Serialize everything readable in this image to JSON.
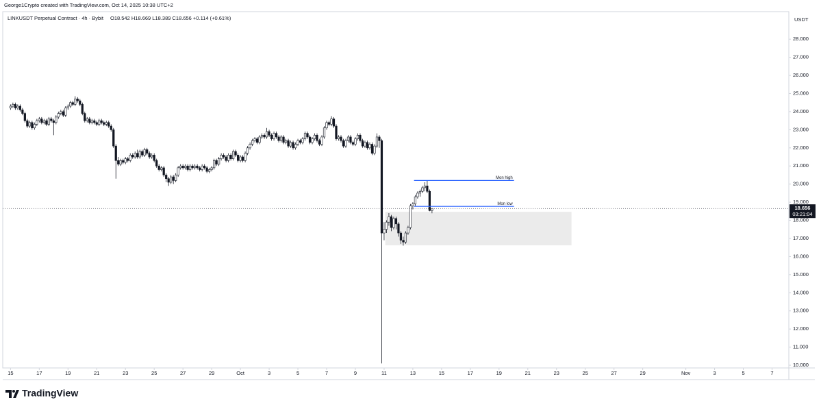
{
  "header": {
    "credit": "George1Crypto created with TradingView.com, Oct 14, 2025 10:38 UTC+2",
    "brand": "TradingView"
  },
  "chart_data": {
    "type": "candlestick",
    "title": "LINKUSDT Perpetual Contract · 4h · Bybit",
    "ohlc_legend": "O18.542 H18.669 L18.389 C18.656 +0.114 (+0.61%)",
    "y_axis_label": "USDT",
    "up_color": "#ffffff",
    "down_color": "#131722",
    "wick_color": "#131722",
    "x": [
      0,
      4,
      8,
      12,
      16,
      20,
      24,
      28,
      32,
      36,
      40,
      44,
      48,
      52,
      56,
      60,
      64,
      68,
      72,
      76,
      80,
      84,
      88,
      92,
      96,
      100,
      104,
      108,
      112,
      116,
      120,
      124,
      128,
      132,
      136,
      140,
      144,
      148,
      152,
      156,
      160,
      164,
      168,
      172,
      176,
      180,
      184,
      188,
      192,
      196,
      200,
      204,
      208,
      212,
      216,
      220,
      224,
      228,
      232,
      236,
      240,
      244,
      248,
      252,
      256,
      260,
      264,
      268,
      272,
      276,
      280,
      284,
      288,
      292,
      296,
      300,
      304,
      308,
      312,
      316,
      320,
      324,
      328,
      332,
      336,
      340,
      344,
      348,
      352,
      356,
      360,
      364,
      368,
      372,
      376,
      380,
      384,
      388,
      392,
      396,
      400,
      404,
      408,
      412,
      416,
      420,
      424,
      428,
      432,
      436,
      440,
      444,
      448,
      452,
      456,
      460,
      464,
      468,
      472,
      476,
      480,
      484,
      488,
      492,
      496,
      500,
      504,
      508,
      512,
      516,
      520,
      524,
      528,
      532,
      536,
      540,
      544,
      548,
      552,
      556,
      560,
      564,
      568,
      572,
      576,
      580,
      584,
      588,
      592,
      596,
      600,
      604,
      608,
      612,
      616,
      620,
      624,
      628,
      632,
      636,
      640,
      644,
      648,
      652,
      656,
      660,
      664,
      668,
      672,
      676,
      680,
      684,
      688,
      692,
      696,
      700,
      704
    ],
    "ohlc": [
      [
        24.2,
        24.4,
        24.1,
        24.3
      ],
      [
        24.3,
        24.5,
        24.2,
        24.4
      ],
      [
        24.4,
        24.5,
        24.1,
        24.2
      ],
      [
        24.2,
        24.4,
        24.1,
        24.3
      ],
      [
        24.3,
        24.4,
        24.0,
        24.1
      ],
      [
        24.1,
        24.2,
        23.8,
        23.9
      ],
      [
        23.9,
        24.0,
        23.4,
        23.5
      ],
      [
        23.5,
        23.6,
        23.1,
        23.2
      ],
      [
        23.2,
        23.5,
        23.1,
        23.4
      ],
      [
        23.4,
        23.5,
        23.0,
        23.1
      ],
      [
        23.1,
        23.4,
        23.0,
        23.3
      ],
      [
        23.3,
        23.6,
        23.2,
        23.5
      ],
      [
        23.5,
        23.7,
        23.4,
        23.6
      ],
      [
        23.6,
        23.7,
        23.3,
        23.4
      ],
      [
        23.4,
        23.6,
        23.3,
        23.5
      ],
      [
        23.5,
        23.6,
        23.2,
        23.3
      ],
      [
        23.3,
        23.7,
        23.2,
        23.6
      ],
      [
        23.6,
        23.7,
        23.4,
        23.5
      ],
      [
        23.5,
        23.6,
        22.7,
        23.4
      ],
      [
        23.4,
        23.8,
        23.3,
        23.7
      ],
      [
        23.7,
        24.0,
        23.6,
        23.9
      ],
      [
        23.9,
        24.1,
        23.8,
        24.0
      ],
      [
        24.0,
        24.1,
        23.7,
        23.8
      ],
      [
        23.8,
        24.3,
        23.7,
        24.2
      ],
      [
        24.2,
        24.4,
        24.1,
        24.3
      ],
      [
        24.3,
        24.6,
        24.2,
        24.5
      ],
      [
        24.5,
        24.6,
        24.3,
        24.4
      ],
      [
        24.4,
        24.85,
        24.3,
        24.7
      ],
      [
        24.7,
        24.8,
        24.5,
        24.6
      ],
      [
        24.6,
        24.7,
        24.3,
        24.4
      ],
      [
        24.4,
        24.5,
        23.8,
        23.9
      ],
      [
        23.9,
        24.0,
        23.4,
        23.5
      ],
      [
        23.5,
        23.7,
        23.4,
        23.6
      ],
      [
        23.6,
        23.7,
        23.3,
        23.4
      ],
      [
        23.4,
        23.6,
        23.3,
        23.5
      ],
      [
        23.5,
        23.6,
        23.3,
        23.4
      ],
      [
        23.4,
        23.5,
        23.2,
        23.3
      ],
      [
        23.3,
        23.6,
        23.2,
        23.5
      ],
      [
        23.5,
        23.6,
        23.3,
        23.4
      ],
      [
        23.4,
        23.5,
        23.2,
        23.3
      ],
      [
        23.3,
        23.5,
        23.2,
        23.4
      ],
      [
        23.4,
        23.5,
        23.1,
        23.2
      ],
      [
        23.2,
        23.3,
        22.9,
        23.0
      ],
      [
        23.0,
        23.1,
        22.0,
        22.1
      ],
      [
        22.1,
        22.2,
        20.3,
        21.3
      ],
      [
        21.3,
        21.5,
        21.0,
        21.1
      ],
      [
        21.1,
        21.4,
        21.0,
        21.3
      ],
      [
        21.3,
        21.4,
        21.1,
        21.2
      ],
      [
        21.2,
        21.5,
        21.1,
        21.4
      ],
      [
        21.4,
        21.5,
        21.2,
        21.3
      ],
      [
        21.3,
        21.7,
        21.2,
        21.6
      ],
      [
        21.6,
        21.7,
        21.4,
        21.5
      ],
      [
        21.5,
        21.8,
        21.4,
        21.7
      ],
      [
        21.7,
        21.9,
        21.4,
        21.5
      ],
      [
        21.5,
        21.9,
        21.4,
        21.8
      ],
      [
        21.8,
        21.9,
        21.5,
        21.6
      ],
      [
        21.6,
        22.0,
        21.5,
        21.9
      ],
      [
        21.9,
        22.0,
        21.6,
        21.7
      ],
      [
        21.7,
        21.8,
        21.4,
        21.5
      ],
      [
        21.5,
        21.7,
        21.4,
        21.6
      ],
      [
        21.6,
        21.7,
        21.2,
        21.3
      ],
      [
        21.3,
        21.4,
        20.9,
        21.0
      ],
      [
        21.0,
        21.1,
        20.7,
        20.8
      ],
      [
        20.8,
        21.0,
        20.7,
        20.9
      ],
      [
        20.9,
        21.0,
        20.4,
        20.5
      ],
      [
        20.5,
        20.6,
        20.1,
        20.3
      ],
      [
        20.3,
        20.4,
        19.9,
        20.1
      ],
      [
        20.1,
        20.5,
        20.0,
        20.4
      ],
      [
        20.4,
        20.5,
        20.0,
        20.2
      ],
      [
        20.2,
        20.6,
        20.1,
        20.5
      ],
      [
        20.5,
        21.0,
        20.4,
        20.9
      ],
      [
        20.9,
        21.1,
        20.8,
        21.0
      ],
      [
        21.0,
        21.1,
        20.8,
        20.9
      ],
      [
        20.9,
        21.1,
        20.8,
        21.0
      ],
      [
        21.0,
        21.1,
        20.7,
        20.8
      ],
      [
        20.8,
        21.1,
        20.7,
        21.0
      ],
      [
        21.0,
        21.1,
        20.8,
        20.9
      ],
      [
        20.9,
        21.1,
        20.8,
        21.0
      ],
      [
        21.0,
        21.1,
        20.8,
        20.9
      ],
      [
        20.9,
        21.0,
        20.7,
        20.8
      ],
      [
        20.8,
        21.1,
        20.7,
        21.0
      ],
      [
        21.0,
        21.1,
        20.8,
        20.9
      ],
      [
        20.9,
        21.0,
        20.6,
        20.7
      ],
      [
        20.7,
        20.9,
        20.6,
        20.8
      ],
      [
        20.8,
        21.0,
        20.7,
        20.9
      ],
      [
        20.9,
        21.4,
        20.8,
        21.3
      ],
      [
        21.3,
        21.4,
        21.0,
        21.1
      ],
      [
        21.1,
        21.5,
        21.0,
        21.4
      ],
      [
        21.4,
        21.7,
        21.3,
        21.6
      ],
      [
        21.6,
        21.7,
        21.4,
        21.5
      ],
      [
        21.5,
        21.6,
        21.2,
        21.3
      ],
      [
        21.3,
        21.7,
        21.2,
        21.6
      ],
      [
        21.6,
        21.7,
        21.3,
        21.4
      ],
      [
        21.4,
        21.9,
        21.3,
        21.8
      ],
      [
        21.8,
        21.9,
        21.5,
        21.6
      ],
      [
        21.6,
        21.7,
        21.2,
        21.3
      ],
      [
        21.3,
        21.6,
        21.2,
        21.5
      ],
      [
        21.5,
        21.6,
        21.2,
        21.3
      ],
      [
        21.3,
        21.8,
        21.2,
        21.7
      ],
      [
        21.7,
        22.1,
        21.6,
        22.0
      ],
      [
        22.0,
        22.3,
        21.9,
        22.2
      ],
      [
        22.2,
        22.5,
        22.1,
        22.4
      ],
      [
        22.4,
        22.6,
        22.3,
        22.5
      ],
      [
        22.5,
        22.6,
        22.2,
        22.3
      ],
      [
        22.3,
        22.7,
        22.2,
        22.6
      ],
      [
        22.6,
        22.8,
        22.5,
        22.7
      ],
      [
        22.7,
        22.8,
        22.5,
        22.6
      ],
      [
        22.6,
        23.1,
        22.5,
        22.9
      ],
      [
        22.9,
        23.0,
        22.6,
        22.7
      ],
      [
        22.7,
        22.8,
        22.4,
        22.5
      ],
      [
        22.5,
        22.9,
        22.4,
        22.8
      ],
      [
        22.8,
        22.9,
        22.5,
        22.6
      ],
      [
        22.6,
        22.7,
        22.3,
        22.4
      ],
      [
        22.4,
        22.7,
        22.3,
        22.6
      ],
      [
        22.6,
        22.7,
        22.2,
        22.3
      ],
      [
        22.3,
        22.5,
        22.2,
        22.4
      ],
      [
        22.4,
        22.5,
        22.0,
        22.1
      ],
      [
        22.1,
        22.4,
        22.0,
        22.3
      ],
      [
        22.3,
        22.4,
        21.9,
        22.0
      ],
      [
        22.0,
        22.3,
        21.9,
        22.2
      ],
      [
        22.2,
        22.5,
        22.1,
        22.4
      ],
      [
        22.4,
        22.5,
        22.2,
        22.3
      ],
      [
        22.3,
        22.6,
        22.2,
        22.5
      ],
      [
        22.5,
        22.9,
        22.4,
        22.8
      ],
      [
        22.8,
        22.9,
        22.5,
        22.6
      ],
      [
        22.6,
        22.7,
        22.2,
        22.3
      ],
      [
        22.3,
        22.6,
        22.2,
        22.5
      ],
      [
        22.5,
        22.8,
        22.4,
        22.7
      ],
      [
        22.7,
        22.8,
        22.3,
        22.4
      ],
      [
        22.4,
        22.5,
        22.1,
        22.2
      ],
      [
        22.2,
        22.7,
        22.1,
        22.6
      ],
      [
        22.6,
        23.2,
        22.5,
        23.1
      ],
      [
        23.1,
        23.5,
        23.0,
        23.4
      ],
      [
        23.4,
        23.5,
        23.2,
        23.3
      ],
      [
        23.3,
        23.75,
        23.2,
        23.6
      ],
      [
        23.6,
        23.7,
        23.1,
        23.2
      ],
      [
        23.2,
        23.3,
        22.4,
        22.5
      ],
      [
        22.5,
        22.7,
        22.4,
        22.6
      ],
      [
        22.6,
        22.7,
        22.3,
        22.4
      ],
      [
        22.4,
        22.5,
        22.0,
        22.1
      ],
      [
        22.1,
        22.5,
        22.0,
        22.4
      ],
      [
        22.4,
        22.7,
        22.3,
        22.6
      ],
      [
        22.6,
        22.7,
        22.2,
        22.3
      ],
      [
        22.3,
        22.4,
        22.1,
        22.2
      ],
      [
        22.2,
        22.6,
        22.1,
        22.5
      ],
      [
        22.5,
        22.8,
        22.4,
        22.7
      ],
      [
        22.7,
        22.8,
        22.3,
        22.4
      ],
      [
        22.4,
        22.5,
        22.0,
        22.1
      ],
      [
        22.1,
        22.4,
        22.0,
        22.3
      ],
      [
        22.3,
        22.4,
        21.9,
        22.0
      ],
      [
        22.0,
        22.3,
        21.9,
        22.2
      ],
      [
        22.2,
        22.3,
        21.6,
        21.7
      ],
      [
        21.7,
        22.2,
        21.6,
        22.1
      ],
      [
        22.1,
        22.8,
        22.0,
        22.6
      ],
      [
        22.6,
        22.7,
        22.0,
        22.4
      ],
      [
        22.4,
        22.5,
        10.1,
        17.3
      ],
      [
        17.3,
        17.9,
        16.9,
        17.5
      ],
      [
        17.5,
        18.0,
        17.3,
        17.9
      ],
      [
        17.9,
        18.4,
        17.7,
        18.2
      ],
      [
        18.2,
        18.3,
        17.4,
        17.6
      ],
      [
        17.6,
        18.2,
        17.5,
        18.1
      ],
      [
        18.1,
        18.2,
        17.5,
        17.8
      ],
      [
        17.8,
        17.9,
        17.1,
        17.3
      ],
      [
        17.3,
        17.4,
        16.7,
        16.9
      ],
      [
        16.9,
        17.1,
        16.6,
        16.8
      ],
      [
        16.8,
        17.4,
        16.7,
        17.3
      ],
      [
        17.3,
        17.7,
        17.2,
        17.6
      ],
      [
        17.6,
        18.9,
        17.5,
        18.8
      ],
      [
        18.8,
        19.0,
        18.6,
        18.9
      ],
      [
        18.9,
        19.4,
        18.8,
        19.3
      ],
      [
        19.3,
        19.6,
        19.2,
        19.5
      ],
      [
        19.5,
        19.7,
        19.3,
        19.6
      ],
      [
        19.6,
        19.9,
        19.5,
        19.8
      ],
      [
        19.8,
        20.1,
        19.6,
        19.9
      ],
      [
        19.9,
        20.2,
        19.5,
        19.6
      ],
      [
        19.6,
        19.7,
        18.5,
        18.54
      ],
      [
        18.542,
        18.669,
        18.389,
        18.656
      ]
    ],
    "xlim": [
      -13,
      1300
    ],
    "xticks": [
      {
        "value": 0,
        "label": "15"
      },
      {
        "value": 48,
        "label": "17"
      },
      {
        "value": 96,
        "label": "19"
      },
      {
        "value": 144,
        "label": "21"
      },
      {
        "value": 192,
        "label": "23"
      },
      {
        "value": 240,
        "label": "25"
      },
      {
        "value": 288,
        "label": "27"
      },
      {
        "value": 336,
        "label": "29"
      },
      {
        "value": 384,
        "label": "Oct"
      },
      {
        "value": 432,
        "label": "3"
      },
      {
        "value": 480,
        "label": "5"
      },
      {
        "value": 528,
        "label": "7"
      },
      {
        "value": 576,
        "label": "9"
      },
      {
        "value": 624,
        "label": "11"
      },
      {
        "value": 672,
        "label": "13"
      },
      {
        "value": 720,
        "label": "15"
      },
      {
        "value": 768,
        "label": "17"
      },
      {
        "value": 816,
        "label": "19"
      },
      {
        "value": 864,
        "label": "21"
      },
      {
        "value": 912,
        "label": "23"
      },
      {
        "value": 960,
        "label": "25"
      },
      {
        "value": 1008,
        "label": "27"
      },
      {
        "value": 1056,
        "label": "29"
      },
      {
        "value": 1128,
        "label": "Nov"
      },
      {
        "value": 1176,
        "label": "3"
      },
      {
        "value": 1224,
        "label": "5"
      },
      {
        "value": 1272,
        "label": "7"
      }
    ],
    "ylim": [
      9.85,
      29.52
    ],
    "yticks": [
      {
        "value": 10,
        "label": "10.000"
      },
      {
        "value": 11,
        "label": "11.000"
      },
      {
        "value": 12,
        "label": "12.000"
      },
      {
        "value": 13,
        "label": "13.000"
      },
      {
        "value": 14,
        "label": "14.000"
      },
      {
        "value": 15,
        "label": "15.000"
      },
      {
        "value": 16,
        "label": "16.000"
      },
      {
        "value": 17,
        "label": "17.000"
      },
      {
        "value": 18,
        "label": "18.000"
      },
      {
        "value": 19,
        "label": "19.000"
      },
      {
        "value": 20,
        "label": "20.000"
      },
      {
        "value": 21,
        "label": "21.000"
      },
      {
        "value": 22,
        "label": "22.000"
      },
      {
        "value": 23,
        "label": "23.000"
      },
      {
        "value": 24,
        "label": "24.000"
      },
      {
        "value": 25,
        "label": "25.000"
      },
      {
        "value": 26,
        "label": "26.000"
      },
      {
        "value": 27,
        "label": "27.000"
      },
      {
        "value": 28,
        "label": "28.000"
      }
    ],
    "last_price": 18.656,
    "countdown": "03:21:04",
    "levels": [
      {
        "label": "Mon high",
        "y": 20.2,
        "x": [
          674,
          841
        ],
        "color": "#2962ff"
      },
      {
        "label": "Mon low",
        "y": 18.77,
        "x": [
          674,
          841
        ],
        "color": "#2962ff"
      }
    ],
    "zone": {
      "x": [
        626,
        937
      ],
      "y": [
        16.62,
        18.47
      ],
      "color": "#ebebeb"
    }
  }
}
